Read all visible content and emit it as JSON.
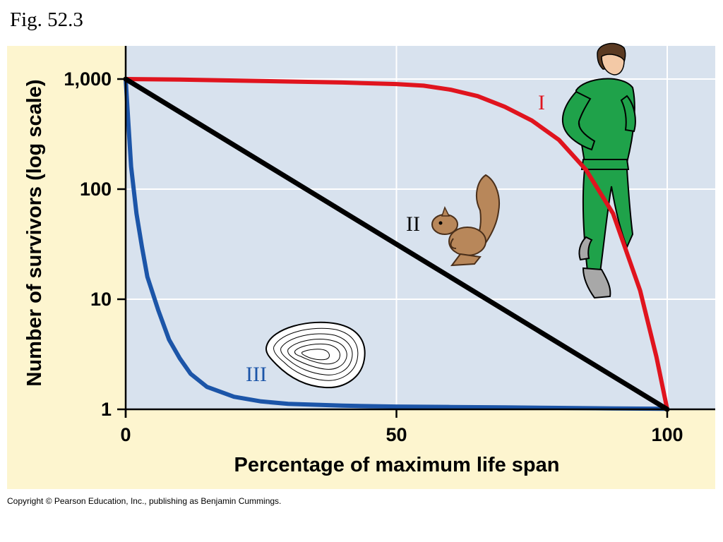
{
  "figure_label": "Fig. 52.3",
  "copyright": "Copyright © Pearson Education, Inc., publishing as Benjamin Cummings.",
  "colors": {
    "frame_bg": "#fdf5cf",
    "plot_bg": "#d8e2ee",
    "grid": "#ffffff",
    "type_i": "#e0141e",
    "type_ii": "#000000",
    "type_iii": "#1c55a8",
    "human": "#1fa24a",
    "squirrel": "#b8875a"
  },
  "illustrations": {
    "type_i": "running-human-icon",
    "type_ii": "squirrel-icon",
    "type_iii": "oyster-shell-icon"
  },
  "chart_data": {
    "type": "line",
    "title": "",
    "xlabel": "Percentage of maximum life span",
    "ylabel": "Number of survivors (log scale)",
    "y_scale": "log",
    "xlim": [
      0,
      100
    ],
    "ylim": [
      1,
      1000
    ],
    "x_ticks": [
      0,
      50,
      100
    ],
    "x_tick_labels": [
      "0",
      "50",
      "100"
    ],
    "y_ticks": [
      1,
      10,
      100,
      1000
    ],
    "y_tick_labels": [
      "1",
      "10",
      "100",
      "1,000"
    ],
    "grid": true,
    "series": [
      {
        "name": "I",
        "x": [
          0,
          10,
          20,
          30,
          40,
          50,
          55,
          60,
          65,
          70,
          75,
          80,
          85,
          90,
          95,
          98,
          100
        ],
        "y": [
          1000,
          990,
          970,
          950,
          930,
          900,
          870,
          800,
          700,
          560,
          420,
          280,
          150,
          60,
          12,
          3,
          1
        ]
      },
      {
        "name": "II",
        "x": [
          0,
          100
        ],
        "y": [
          1000,
          1
        ]
      },
      {
        "name": "III",
        "x": [
          0,
          0.5,
          1,
          2,
          3,
          4,
          6,
          8,
          10,
          12,
          15,
          20,
          25,
          30,
          40,
          50,
          60,
          70,
          80,
          90,
          100
        ],
        "y": [
          1000,
          400,
          160,
          60,
          30,
          16,
          8,
          4.3,
          2.9,
          2.1,
          1.6,
          1.3,
          1.18,
          1.12,
          1.08,
          1.06,
          1.05,
          1.04,
          1.03,
          1.02,
          1.01
        ]
      }
    ]
  }
}
